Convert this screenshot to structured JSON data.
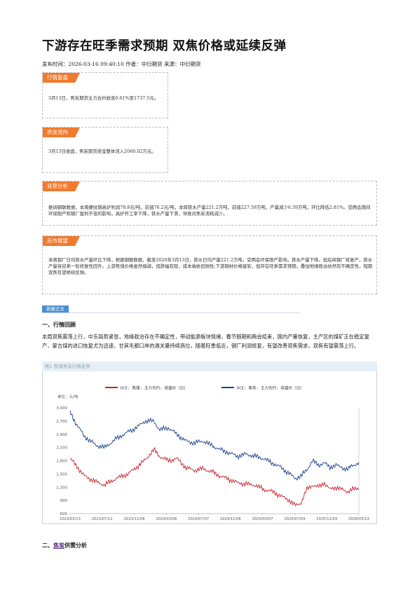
{
  "article": {
    "title": "下游存在旺季需求预期 双焦价格或延续反弹",
    "meta": "发布时间：2026-03-16 09:40:10 作者：中衍期货 来源：中衍期货"
  },
  "sections": [
    {
      "tag": "行情复盘",
      "text": "3月13日，焦炭期货主力合约收涨0.61%至1737.5元。"
    },
    {
      "tag": "资金流向",
      "text": "3月13日收盘，焦炭期货资金整体流入2060.02万元。"
    },
    {
      "tag": "背景分析",
      "text": "据调钢联数据，本周螺纹钢高炉利润78.8元/吨，前值76.2元/吨，本周铁水产量221.2万吨，前值227.59万吨，产量减少6.39万吨，环比降低2.81%。受两会期间环保限产和钢厂盈利不佳的影响，高炉开工率下降，铁水产量下滑，导致对焦炭消耗减少。"
    },
    {
      "tag": "后市展望",
      "text": "本周钢厂日均铁水产量环比下降，根据钢联数据，截至2026年3月13日，铁水日均产量221.2万吨，受两会环保限产影响，铁水产量下降，但后续钢厂将复产，铁水产量将迎来一轮修复性回升。上游焦煤价格虽然偏弱，但跌幅有限，成本端依旧刚性;下游钢材价格疲软，但存在旺季需求预期，叠加地缘政治依然有不确定性，短期双焦有望继续反弹。"
    }
  ],
  "news": {
    "label": "新报正文",
    "heading1": "一、行情回顾",
    "paragraph": "本周双焦震荡上行，中东局势紧张，地缘政治存在不确定性，带动能源板块情绪，春节假期和两会结束，国内产量恢复，主产区的煤矿正在稳定复产，蒙古煤的进口恢复尤为迅速，甘其毛都口岸的通关量持续高位，随着旺季临近，钢厂利润修复，有望改善双焦需求，双焦有望震荡上行。",
    "heading2_prefix": "二、",
    "heading2_link": "焦炭",
    "heading2_suffix": "供需分析"
  },
  "chart_data": {
    "type": "line",
    "caption": "图1 焦煤焦炭行情走势",
    "unit_label": "单位：元/吨",
    "x_ticks": [
      "2023/03/13",
      "2023/07/11",
      "2023/11/08",
      "2024/03/08",
      "2024/07/07",
      "2024/11/06",
      "2025/03/07",
      "2025/07/04",
      "2025/11/03",
      "2026/03/13"
    ],
    "y_ticks": [
      "600",
      "900",
      "1,200",
      "1,500",
      "1,800",
      "2,100",
      "2,400",
      "2,700",
      "3,000"
    ],
    "ylim": [
      600,
      3000
    ],
    "series": [
      {
        "name": "DCE: 焦煤: 主力合约: 收盘价（日）",
        "color": "#c8202a",
        "anchors": [
          [
            0,
            1850
          ],
          [
            0.02,
            1700
          ],
          [
            0.05,
            1450
          ],
          [
            0.09,
            1320
          ],
          [
            0.12,
            1250
          ],
          [
            0.16,
            1400
          ],
          [
            0.2,
            1500
          ],
          [
            0.23,
            1650
          ],
          [
            0.26,
            1820
          ],
          [
            0.29,
            2050
          ],
          [
            0.31,
            1900
          ],
          [
            0.34,
            1800
          ],
          [
            0.37,
            1850
          ],
          [
            0.4,
            1650
          ],
          [
            0.43,
            1580
          ],
          [
            0.46,
            1620
          ],
          [
            0.49,
            1550
          ],
          [
            0.52,
            1450
          ],
          [
            0.55,
            1380
          ],
          [
            0.58,
            1300
          ],
          [
            0.61,
            1270
          ],
          [
            0.64,
            1250
          ],
          [
            0.67,
            1150
          ],
          [
            0.7,
            1100
          ],
          [
            0.73,
            1000
          ],
          [
            0.76,
            900
          ],
          [
            0.78,
            780
          ],
          [
            0.8,
            850
          ],
          [
            0.82,
            1150
          ],
          [
            0.84,
            1250
          ],
          [
            0.86,
            1200
          ],
          [
            0.88,
            1300
          ],
          [
            0.9,
            1150
          ],
          [
            0.92,
            1200
          ],
          [
            0.94,
            1150
          ],
          [
            0.96,
            1100
          ],
          [
            0.98,
            1150
          ],
          [
            1,
            1180
          ]
        ]
      },
      {
        "name": "DCE: 焦炭: 主力合约: 收盘价（日）",
        "color": "#1a3f8f",
        "anchors": [
          [
            0,
            2900
          ],
          [
            0.02,
            2650
          ],
          [
            0.05,
            2350
          ],
          [
            0.09,
            2150
          ],
          [
            0.12,
            2100
          ],
          [
            0.16,
            2300
          ],
          [
            0.2,
            2450
          ],
          [
            0.23,
            2550
          ],
          [
            0.26,
            2700
          ],
          [
            0.29,
            2700
          ],
          [
            0.31,
            2500
          ],
          [
            0.34,
            2550
          ],
          [
            0.37,
            2400
          ],
          [
            0.4,
            2250
          ],
          [
            0.43,
            2200
          ],
          [
            0.46,
            2250
          ],
          [
            0.49,
            2150
          ],
          [
            0.52,
            2050
          ],
          [
            0.55,
            1980
          ],
          [
            0.58,
            1900
          ],
          [
            0.61,
            1950
          ],
          [
            0.64,
            1900
          ],
          [
            0.67,
            1850
          ],
          [
            0.7,
            1750
          ],
          [
            0.73,
            1650
          ],
          [
            0.76,
            1500
          ],
          [
            0.78,
            1400
          ],
          [
            0.8,
            1450
          ],
          [
            0.82,
            1600
          ],
          [
            0.84,
            1800
          ],
          [
            0.86,
            1700
          ],
          [
            0.88,
            1750
          ],
          [
            0.9,
            1650
          ],
          [
            0.92,
            1700
          ],
          [
            0.94,
            1650
          ],
          [
            0.96,
            1600
          ],
          [
            0.98,
            1700
          ],
          [
            1,
            1750
          ]
        ]
      }
    ]
  }
}
